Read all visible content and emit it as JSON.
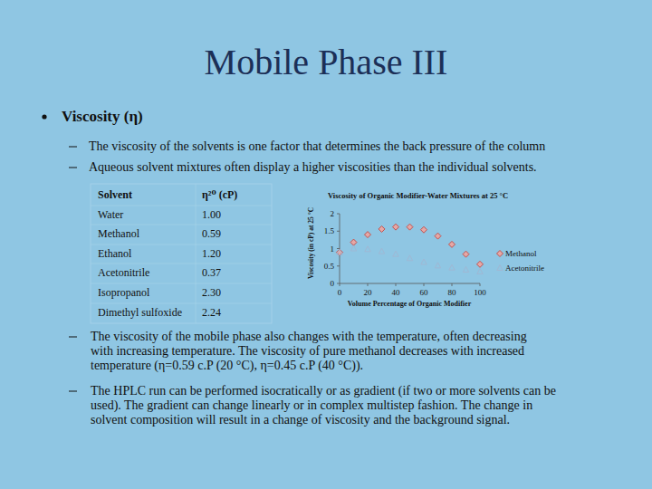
{
  "slide": {
    "title": "Mobile Phase III",
    "bullet": "Viscosity (η)",
    "sub_bullets": [
      "The viscosity of the solvents is one factor that determines the back pressure of the column",
      "Aqueous solvent mixtures often display a higher viscosities than the individual solvents."
    ],
    "table": {
      "header": [
        "Solvent",
        "η²⁰ (cP)"
      ],
      "rows": [
        [
          "Water",
          "1.00"
        ],
        [
          "Methanol",
          "0.59"
        ],
        [
          "Ethanol",
          "1.20"
        ],
        [
          "Acetonitrile",
          "0.37"
        ],
        [
          "Isopropanol",
          "2.30"
        ],
        [
          "Dimethyl sulfoxide",
          "2.24"
        ]
      ]
    },
    "notes": [
      [
        "The viscosity of the mobile phase also changes with the temperature, often decreasing",
        "with increasing temperature. The viscosity of pure methanol decreases  with increased",
        "temperature (η=0.59 c.P (20 °C), η=0.45 c.P (40 °C))."
      ],
      [
        "The HPLC run can be performed isocratically or as gradient (if two or more solvents can be",
        "used). The gradient can change linearly or in complex multistep fashion. The change in",
        "solvent composition will result in a change of viscosity and the background signal."
      ]
    ]
  },
  "chart_data": {
    "type": "scatter",
    "title": "Viscosity of Organic Modifier-Water Mixtures at 25 °C",
    "x_label": "Volume Percentage of Organic Modifier",
    "y_label": "Viscosity (in cP) at 25 °C",
    "x": [
      0,
      10,
      20,
      30,
      40,
      50,
      60,
      70,
      80,
      90,
      100
    ],
    "series": [
      {
        "name": "Methanol",
        "color": "#c0504d",
        "marker": "diamond",
        "values": [
          0.89,
          1.18,
          1.4,
          1.56,
          1.62,
          1.62,
          1.54,
          1.36,
          1.12,
          0.84,
          0.55
        ]
      },
      {
        "name": "Acetonitrile",
        "color": "#9fb8d4",
        "marker": "triangle",
        "values": [
          0.89,
          1.0,
          0.98,
          0.92,
          0.84,
          0.72,
          0.61,
          0.51,
          0.45,
          0.39,
          0.34
        ]
      }
    ],
    "xlim": [
      0,
      100
    ],
    "xticks": [
      0,
      20,
      40,
      60,
      80,
      100
    ],
    "ylim": [
      0,
      2
    ],
    "yticks": [
      0,
      0.5,
      1,
      1.5,
      2
    ],
    "legend": "right",
    "grid": false
  }
}
